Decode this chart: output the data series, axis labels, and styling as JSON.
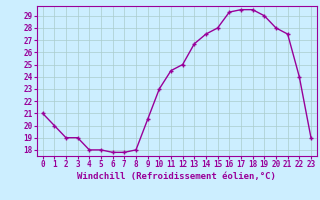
{
  "hours": [
    0,
    1,
    2,
    3,
    4,
    5,
    6,
    7,
    8,
    9,
    10,
    11,
    12,
    13,
    14,
    15,
    16,
    17,
    18,
    19,
    20,
    21,
    22,
    23
  ],
  "values": [
    21,
    20,
    19,
    19,
    18,
    18,
    17.8,
    17.8,
    18,
    20.5,
    23,
    24.5,
    25.0,
    26.7,
    27.5,
    28.0,
    29.3,
    29.5,
    29.5,
    29.0,
    28.0,
    27.5,
    24.0,
    19
  ],
  "line_color": "#990099",
  "marker": "+",
  "bg_color": "#cceeff",
  "grid_color": "#aacccc",
  "xlabel": "Windchill (Refroidissement éolien,°C)",
  "ylim": [
    17.5,
    29.8
  ],
  "xlim": [
    -0.5,
    23.5
  ],
  "yticks": [
    18,
    19,
    20,
    21,
    22,
    23,
    24,
    25,
    26,
    27,
    28,
    29
  ],
  "xticks": [
    0,
    1,
    2,
    3,
    4,
    5,
    6,
    7,
    8,
    9,
    10,
    11,
    12,
    13,
    14,
    15,
    16,
    17,
    18,
    19,
    20,
    21,
    22,
    23
  ],
  "tick_fontsize": 5.5,
  "xlabel_fontsize": 6.5,
  "linewidth": 1.0,
  "markersize": 3.5
}
